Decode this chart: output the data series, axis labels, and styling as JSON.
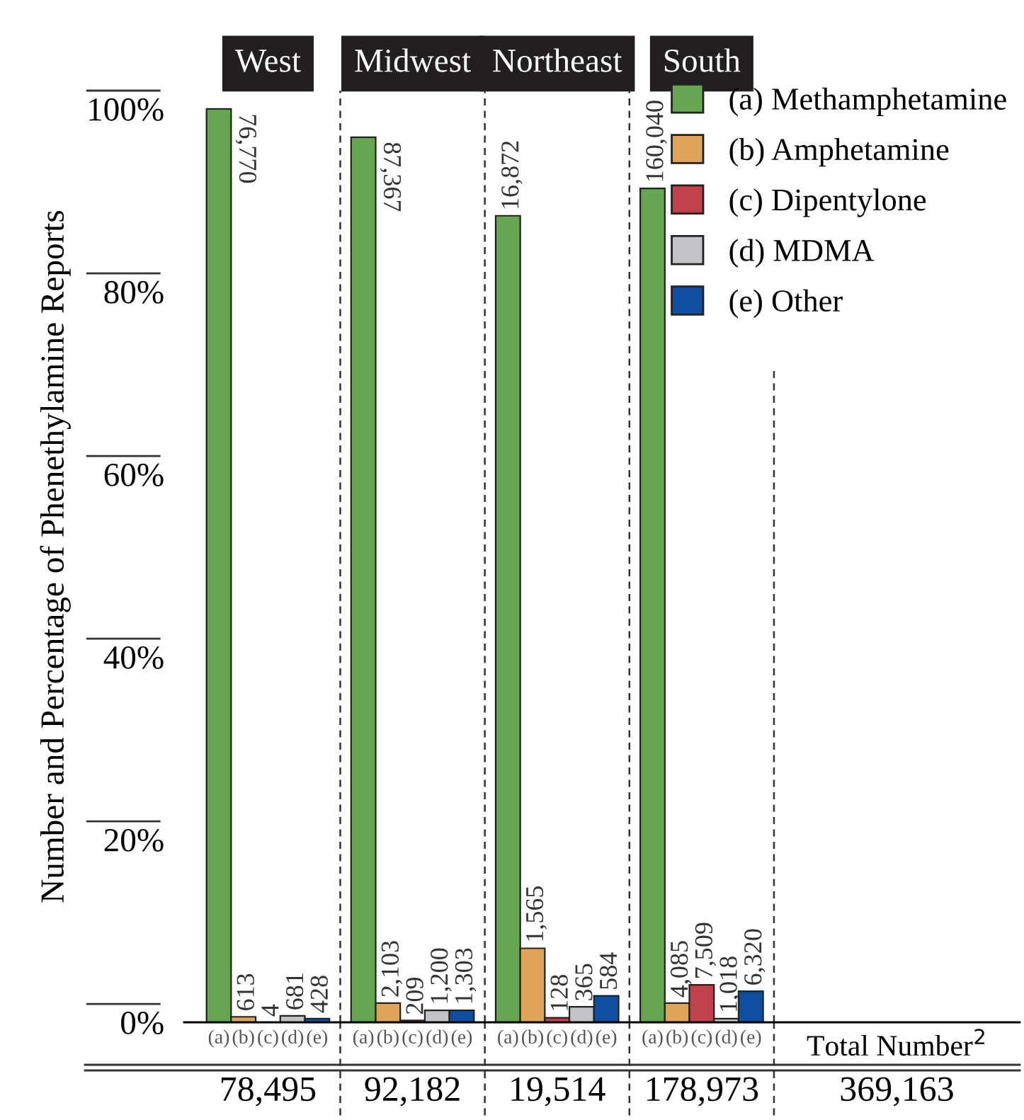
{
  "chart_data": {
    "type": "bar",
    "ylabel": "Number and Percentage of Phenethylamine Reports",
    "categories": [
      "West",
      "Midwest",
      "Northeast",
      "South"
    ],
    "series": [
      {
        "name": "(a) Methamphetamine",
        "color": "#67a651",
        "values": [
          100,
          96.9,
          88.3,
          91.3
        ]
      },
      {
        "name": "(b) Amphetamine",
        "color": "#dea55a",
        "values": [
          0.6,
          2.1,
          8.1,
          2.1
        ]
      },
      {
        "name": "(c) Dipentylone",
        "color": "#c0404c",
        "values": [
          0,
          0.2,
          0.5,
          4.1
        ]
      },
      {
        "name": "(d) MDMA",
        "color": "#c2c3c6",
        "values": [
          0.7,
          1.3,
          1.7,
          0.4
        ]
      },
      {
        "name": "(e) Other",
        "color": "#0d4e9e",
        "values": [
          0.4,
          1.3,
          2.9,
          3.4
        ]
      }
    ],
    "ylim": [
      0,
      102
    ],
    "yticks": [
      {
        "value": 0,
        "label": "0%"
      },
      {
        "value": 20,
        "label": "20%"
      },
      {
        "value": 40,
        "label": "40%"
      },
      {
        "value": 60,
        "label": "60%"
      },
      {
        "value": 80,
        "label": "80%"
      },
      {
        "value": 100,
        "label": "100%"
      }
    ],
    "grid": false,
    "legend": "top right",
    "annotations": [
      "76,770",
      "613",
      "4",
      "681",
      "428",
      "87,367",
      "2,103",
      "209",
      "1,200",
      "1,303",
      "16,872",
      "1,565",
      "128",
      "365",
      "584",
      "160,040",
      "4,085",
      "7,509",
      "1,018",
      "6,320",
      "(a)",
      "(b)",
      "(c)",
      "(d)",
      "(e)",
      "(a)",
      "(b)",
      "(c)",
      "(d)",
      "(e)",
      "(a)",
      "(b)",
      "(c)",
      "(d)",
      "(e)",
      "(a)",
      "(b)",
      "(c)",
      "(d)",
      "(e)",
      "78,495",
      "92,182",
      "19,514",
      "178,973",
      "Total Number$^{2}$",
      "369,163"
    ]
  }
}
